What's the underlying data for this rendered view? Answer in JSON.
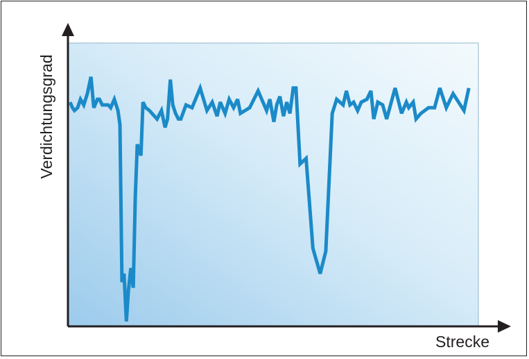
{
  "chart_data": {
    "type": "line",
    "title": "",
    "xlabel": "Strecke",
    "ylabel": "Verdichtungsgrad",
    "ylim": [
      0,
      100
    ],
    "xlim": [
      0,
      100
    ],
    "grid": false,
    "axis_ticks": false,
    "colors": {
      "line": "#1b8ac8",
      "axis": "#231f20",
      "background_light": "#f4fafd",
      "background_dark": "#9ccbec"
    },
    "series": [
      {
        "x": [
          0.0,
          0.6,
          1.1,
          1.9,
          2.6,
          3.4,
          4.3,
          5.2,
          5.9,
          6.8,
          7.3,
          8.0,
          9.5,
          10.1,
          11.0,
          11.9,
          12.4,
          12.9,
          13.4,
          14.0,
          14.5,
          15.1,
          15.7,
          16.2,
          16.7,
          17.6,
          18.1,
          18.8,
          19.7,
          21.6,
          22.7,
          23.6,
          24.2,
          24.9,
          25.5,
          26.2,
          26.9,
          27.5,
          28.8,
          30.3,
          32.3,
          34.0,
          35.3,
          36.5,
          37.3,
          38.5,
          39.5,
          40.6,
          41.6,
          42.3,
          44.6,
          46.7,
          48.8,
          49.6,
          50.6,
          51.3,
          52.1,
          53.0,
          53.8,
          54.6,
          55.4,
          56.1,
          57.1,
          58.6,
          60.3,
          62.1,
          63.5,
          65.1,
          66.2,
          67.8,
          68.6,
          69.5,
          70.4,
          71.4,
          72.3,
          73.7,
          74.7,
          75.4,
          76.4,
          77.6,
          78.6,
          80.7,
          82.3,
          83.5,
          84.1,
          85.2,
          85.9,
          87.1,
          89.0,
          90.5,
          91.8,
          93.4,
          95.1,
          97.8,
          99.0
        ],
        "y": [
          79.0,
          77.0,
          76.0,
          77.0,
          80.0,
          78.0,
          82.0,
          88.0,
          77.0,
          80.0,
          80.0,
          78.0,
          78.0,
          77.0,
          80.0,
          76.0,
          71.0,
          15.0,
          18.0,
          1.0,
          12.0,
          20.0,
          13.0,
          45.0,
          64.0,
          60.0,
          79.0,
          77.0,
          76.0,
          73.0,
          76.0,
          70.0,
          73.0,
          87.0,
          78.0,
          75.0,
          73.0,
          73.0,
          78.0,
          77.0,
          84.0,
          76.0,
          79.0,
          74.0,
          79.0,
          75.0,
          80.0,
          77.0,
          80.0,
          75.0,
          77.0,
          83.0,
          76.0,
          80.0,
          72.0,
          78.0,
          81.0,
          74.0,
          79.0,
          75.0,
          84.0,
          84.0,
          57.0,
          59.0,
          27.0,
          18.0,
          26.0,
          75.0,
          80.0,
          78.0,
          83.0,
          78.0,
          79.0,
          76.0,
          79.0,
          80.0,
          83.0,
          73.0,
          79.0,
          78.0,
          73.0,
          84.0,
          75.0,
          79.0,
          77.0,
          79.0,
          73.0,
          75.0,
          77.0,
          77.0,
          84.0,
          77.0,
          82.0,
          76.0,
          84.0
        ],
        "note_units": "read from pixel positions as percent of plot area"
      }
    ]
  }
}
